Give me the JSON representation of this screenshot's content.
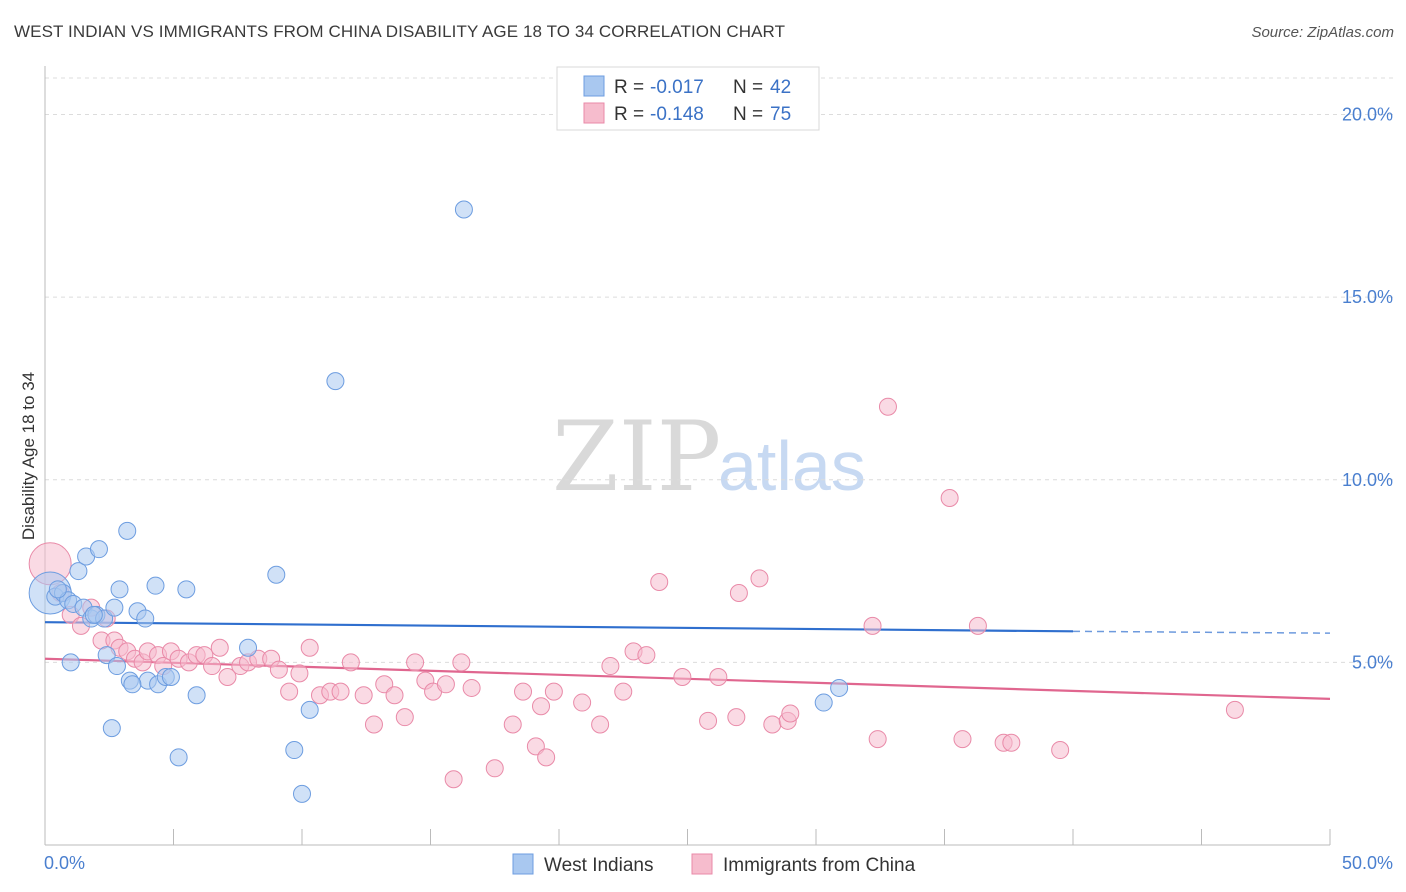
{
  "header": {
    "title": "WEST INDIAN VS IMMIGRANTS FROM CHINA DISABILITY AGE 18 TO 34 CORRELATION CHART",
    "source": "Source: ZipAtlas.com"
  },
  "watermark": {
    "zip": "ZIP",
    "atlas": "atlas"
  },
  "legend": {
    "rows": [
      {
        "r_label": "R = ",
        "r_value": "-0.017",
        "n_label": "N = ",
        "n_value": "42"
      },
      {
        "r_label": "R = ",
        "r_value": "-0.148",
        "n_label": "N = ",
        "n_value": "75"
      }
    ]
  },
  "colors": {
    "blue_fill": "#a9c8f0",
    "blue_stroke": "#6d9de0",
    "blue_line": "#2f6fce",
    "pink_fill": "#f6bccd",
    "pink_stroke": "#e98aa8",
    "pink_line": "#e0668f"
  },
  "chart_data": {
    "type": "scatter",
    "title": "WEST INDIAN VS IMMIGRANTS FROM CHINA DISABILITY AGE 18 TO 34 CORRELATION CHART",
    "xlabel": "",
    "ylabel": "Disability Age 18 to 34",
    "xlim": [
      0,
      50
    ],
    "ylim": [
      0,
      21
    ],
    "x_tick_labels": {
      "left": "0.0%",
      "right": "50.0%"
    },
    "y_ticks": [
      {
        "value": 5,
        "label": "5.0%"
      },
      {
        "value": 10,
        "label": "10.0%"
      },
      {
        "value": 15,
        "label": "15.0%"
      },
      {
        "value": 20,
        "label": "20.0%"
      }
    ],
    "series": [
      {
        "name": "West Indians",
        "trend": {
          "x": [
            0,
            40
          ],
          "y": [
            6.1,
            5.85
          ],
          "dashed_to": [
            50,
            5.8
          ]
        },
        "points": [
          {
            "x": 0.2,
            "y": 6.9,
            "big": true
          },
          {
            "x": 0.4,
            "y": 6.8
          },
          {
            "x": 0.7,
            "y": 6.9
          },
          {
            "x": 0.9,
            "y": 6.7
          },
          {
            "x": 1.1,
            "y": 6.6
          },
          {
            "x": 1.3,
            "y": 7.5
          },
          {
            "x": 1.5,
            "y": 6.5
          },
          {
            "x": 1.6,
            "y": 7.9
          },
          {
            "x": 1.8,
            "y": 6.2
          },
          {
            "x": 2.0,
            "y": 6.3
          },
          {
            "x": 2.1,
            "y": 8.1
          },
          {
            "x": 2.3,
            "y": 6.2
          },
          {
            "x": 2.4,
            "y": 5.2
          },
          {
            "x": 2.6,
            "y": 3.2
          },
          {
            "x": 2.7,
            "y": 6.5
          },
          {
            "x": 2.8,
            "y": 4.9
          },
          {
            "x": 2.9,
            "y": 7.0
          },
          {
            "x": 3.2,
            "y": 8.6
          },
          {
            "x": 3.3,
            "y": 4.5
          },
          {
            "x": 3.6,
            "y": 6.4
          },
          {
            "x": 3.9,
            "y": 6.2
          },
          {
            "x": 4.0,
            "y": 4.5
          },
          {
            "x": 4.3,
            "y": 7.1
          },
          {
            "x": 4.4,
            "y": 4.4
          },
          {
            "x": 4.7,
            "y": 4.6
          },
          {
            "x": 4.9,
            "y": 4.6
          },
          {
            "x": 5.2,
            "y": 2.4
          },
          {
            "x": 5.5,
            "y": 7.0
          },
          {
            "x": 5.9,
            "y": 4.1
          },
          {
            "x": 7.9,
            "y": 5.4
          },
          {
            "x": 9.0,
            "y": 7.4
          },
          {
            "x": 9.7,
            "y": 2.6
          },
          {
            "x": 10.0,
            "y": 1.4
          },
          {
            "x": 10.3,
            "y": 3.7
          },
          {
            "x": 11.3,
            "y": 12.7
          },
          {
            "x": 16.3,
            "y": 17.4
          },
          {
            "x": 30.3,
            "y": 3.9
          },
          {
            "x": 30.9,
            "y": 4.3
          },
          {
            "x": 1.0,
            "y": 5.0
          },
          {
            "x": 0.5,
            "y": 7.0
          },
          {
            "x": 1.9,
            "y": 6.3
          },
          {
            "x": 3.4,
            "y": 4.4
          }
        ]
      },
      {
        "name": "Immigrants from China",
        "trend": {
          "x": [
            0,
            50
          ],
          "y": [
            5.1,
            4.0
          ]
        },
        "points": [
          {
            "x": 0.2,
            "y": 7.7,
            "big": true
          },
          {
            "x": 0.6,
            "y": 6.9
          },
          {
            "x": 1.0,
            "y": 6.3
          },
          {
            "x": 1.4,
            "y": 6.0
          },
          {
            "x": 1.8,
            "y": 6.5
          },
          {
            "x": 2.2,
            "y": 5.6
          },
          {
            "x": 2.4,
            "y": 6.2
          },
          {
            "x": 2.7,
            "y": 5.6
          },
          {
            "x": 2.9,
            "y": 5.4
          },
          {
            "x": 3.2,
            "y": 5.3
          },
          {
            "x": 3.5,
            "y": 5.1
          },
          {
            "x": 3.8,
            "y": 5.0
          },
          {
            "x": 4.0,
            "y": 5.3
          },
          {
            "x": 4.4,
            "y": 5.2
          },
          {
            "x": 4.6,
            "y": 4.9
          },
          {
            "x": 4.9,
            "y": 5.3
          },
          {
            "x": 5.2,
            "y": 5.1
          },
          {
            "x": 5.6,
            "y": 5.0
          },
          {
            "x": 5.9,
            "y": 5.2
          },
          {
            "x": 6.2,
            "y": 5.2
          },
          {
            "x": 6.5,
            "y": 4.9
          },
          {
            "x": 6.8,
            "y": 5.4
          },
          {
            "x": 7.1,
            "y": 4.6
          },
          {
            "x": 7.6,
            "y": 4.9
          },
          {
            "x": 7.9,
            "y": 5.0
          },
          {
            "x": 8.3,
            "y": 5.1
          },
          {
            "x": 8.8,
            "y": 5.1
          },
          {
            "x": 9.1,
            "y": 4.8
          },
          {
            "x": 9.5,
            "y": 4.2
          },
          {
            "x": 9.9,
            "y": 4.7
          },
          {
            "x": 10.3,
            "y": 5.4
          },
          {
            "x": 10.7,
            "y": 4.1
          },
          {
            "x": 11.1,
            "y": 4.2
          },
          {
            "x": 11.5,
            "y": 4.2
          },
          {
            "x": 11.9,
            "y": 5.0
          },
          {
            "x": 12.4,
            "y": 4.1
          },
          {
            "x": 12.8,
            "y": 3.3
          },
          {
            "x": 13.2,
            "y": 4.4
          },
          {
            "x": 13.6,
            "y": 4.1
          },
          {
            "x": 14.0,
            "y": 3.5
          },
          {
            "x": 14.4,
            "y": 5.0
          },
          {
            "x": 14.8,
            "y": 4.5
          },
          {
            "x": 15.1,
            "y": 4.2
          },
          {
            "x": 15.6,
            "y": 4.4
          },
          {
            "x": 15.9,
            "y": 1.8
          },
          {
            "x": 16.2,
            "y": 5.0
          },
          {
            "x": 16.6,
            "y": 4.3
          },
          {
            "x": 17.5,
            "y": 2.1
          },
          {
            "x": 18.2,
            "y": 3.3
          },
          {
            "x": 18.6,
            "y": 4.2
          },
          {
            "x": 19.1,
            "y": 2.7
          },
          {
            "x": 19.3,
            "y": 3.8
          },
          {
            "x": 19.5,
            "y": 2.4
          },
          {
            "x": 19.8,
            "y": 4.2
          },
          {
            "x": 20.9,
            "y": 3.9
          },
          {
            "x": 21.6,
            "y": 3.3
          },
          {
            "x": 22.0,
            "y": 4.9
          },
          {
            "x": 22.5,
            "y": 4.2
          },
          {
            "x": 22.9,
            "y": 5.3
          },
          {
            "x": 23.4,
            "y": 5.2
          },
          {
            "x": 23.9,
            "y": 7.2
          },
          {
            "x": 24.8,
            "y": 4.6
          },
          {
            "x": 25.8,
            "y": 3.4
          },
          {
            "x": 26.2,
            "y": 4.6
          },
          {
            "x": 26.9,
            "y": 3.5
          },
          {
            "x": 27.0,
            "y": 6.9
          },
          {
            "x": 27.8,
            "y": 7.3
          },
          {
            "x": 28.3,
            "y": 3.3
          },
          {
            "x": 28.9,
            "y": 3.4
          },
          {
            "x": 29.0,
            "y": 3.6
          },
          {
            "x": 32.2,
            "y": 6.0
          },
          {
            "x": 32.4,
            "y": 2.9
          },
          {
            "x": 32.8,
            "y": 12.0
          },
          {
            "x": 35.2,
            "y": 9.5
          },
          {
            "x": 35.7,
            "y": 2.9
          }
        ]
      }
    ],
    "extra_points": [
      {
        "series": "Immigrants from China",
        "x": 36.3,
        "y": 6.0
      },
      {
        "series": "Immigrants from China",
        "x": 37.3,
        "y": 2.8
      },
      {
        "series": "Immigrants from China",
        "x": 37.6,
        "y": 2.8
      },
      {
        "series": "Immigrants from China",
        "x": 39.5,
        "y": 2.6
      },
      {
        "series": "Immigrants from China",
        "x": 46.3,
        "y": 3.7
      }
    ]
  }
}
